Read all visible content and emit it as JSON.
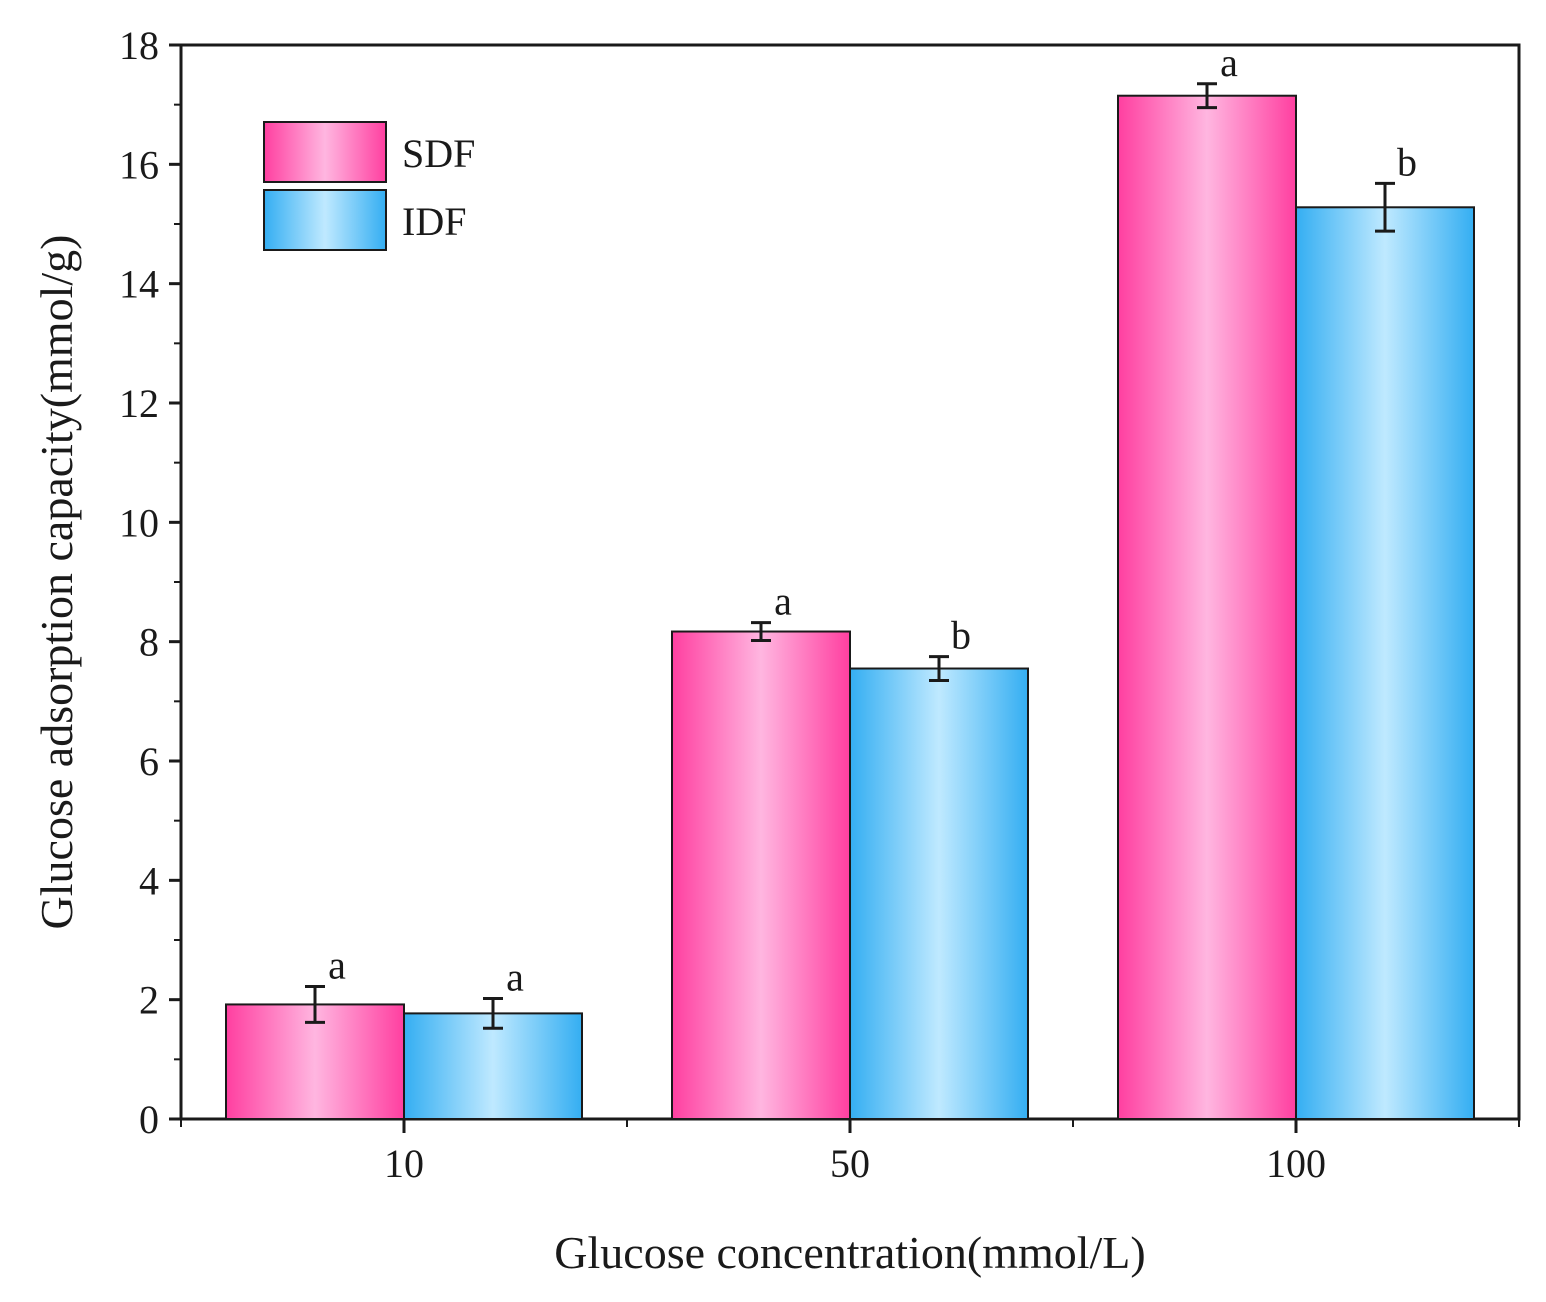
{
  "chart_data": {
    "type": "bar",
    "title": "",
    "xlabel": "Glucose concentration(mmol/L)",
    "ylabel": "Glucose adsorption capacity(mmol/g)",
    "ylim": [
      0,
      18
    ],
    "yticks": [
      0,
      2,
      4,
      6,
      8,
      10,
      12,
      14,
      16,
      18
    ],
    "categories": [
      "10",
      "50",
      "100"
    ],
    "series": [
      {
        "name": "SDF",
        "values": [
          1.92,
          8.17,
          17.15
        ],
        "errors": [
          0.3,
          0.15,
          0.2
        ],
        "significance": [
          "a",
          "a",
          "a"
        ],
        "color_dark": "#ff3fa0",
        "color_light": "#ffb6e0"
      },
      {
        "name": "IDF",
        "values": [
          1.77,
          7.55,
          15.28
        ],
        "errors": [
          0.25,
          0.2,
          0.4
        ],
        "significance": [
          "a",
          "b",
          "b"
        ],
        "color_dark": "#34aef2",
        "color_light": "#bfe9ff"
      }
    ],
    "legend_position": "top-left",
    "grid": false
  }
}
